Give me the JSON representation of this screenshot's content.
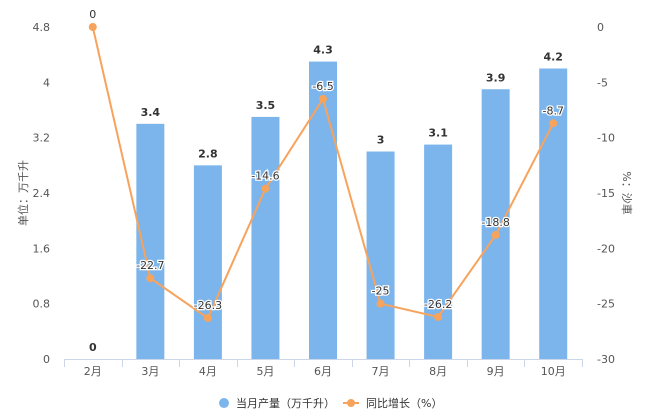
{
  "chart_data": {
    "type": "bar",
    "categories": [
      "2月",
      "3月",
      "4月",
      "5月",
      "6月",
      "7月",
      "8月",
      "9月",
      "10月"
    ],
    "series": [
      {
        "name": "当月产量（万千升）",
        "type": "bar",
        "axis": "left",
        "values": [
          0,
          3.4,
          2.8,
          3.5,
          4.3,
          3,
          3.1,
          3.9,
          4.2
        ],
        "labels": [
          "0",
          "3.4",
          "2.8",
          "3.5",
          "4.3",
          "3",
          "3.1",
          "3.9",
          "4.2"
        ],
        "color": "#7cb5ec"
      },
      {
        "name": "同比增长（%）",
        "type": "line",
        "axis": "right",
        "values": [
          0,
          -22.7,
          -26.3,
          -14.6,
          -6.5,
          -25,
          -26.2,
          -18.8,
          -8.7
        ],
        "labels": [
          "0",
          "-22.7",
          "-26.3",
          "-14.6",
          "-6.5",
          "-25",
          "-26.2",
          "-18.8",
          "-8.7"
        ],
        "color": "#f7a35c"
      }
    ],
    "y_left": {
      "label": "单位：万千升",
      "min": 0,
      "max": 4.8,
      "ticks": [
        "0",
        "0.8",
        "1.6",
        "2.4",
        "3.2",
        "4",
        "4.8"
      ]
    },
    "y_right": {
      "label": "%：沙車",
      "min": -30,
      "max": 0,
      "ticks": [
        "-30",
        "-25",
        "-20",
        "-15",
        "-10",
        "-5",
        "0"
      ]
    },
    "grid": false,
    "legend_position": "bottom-center"
  }
}
